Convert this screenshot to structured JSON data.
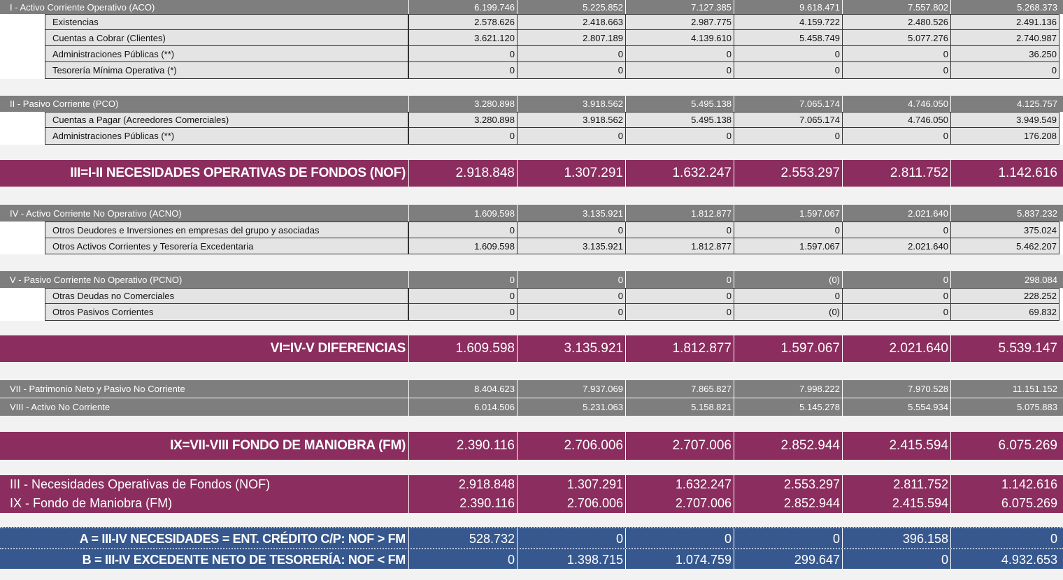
{
  "rows": {
    "aco": {
      "label": "I - Activo Corriente Operativo (ACO)",
      "values": [
        "6.199.746",
        "5.225.852",
        "7.127.385",
        "9.618.471",
        "7.557.802",
        "5.268.373"
      ]
    },
    "existencias": {
      "label": "Existencias",
      "values": [
        "2.578.626",
        "2.418.663",
        "2.987.775",
        "4.159.722",
        "2.480.526",
        "2.491.136"
      ]
    },
    "cuentas_cobrar": {
      "label": "Cuentas a Cobrar (Clientes)",
      "values": [
        "3.621.120",
        "2.807.189",
        "4.139.610",
        "5.458.749",
        "5.077.276",
        "2.740.987"
      ]
    },
    "admin_pub_1": {
      "label": "Administraciones Públicas (**)",
      "values": [
        "0",
        "0",
        "0",
        "0",
        "0",
        "36.250"
      ]
    },
    "tesoreria_min": {
      "label": "Tesorería Mínima Operativa (*)",
      "values": [
        "0",
        "0",
        "0",
        "0",
        "0",
        "0"
      ]
    },
    "pco": {
      "label": "II - Pasivo Corriente (PCO)",
      "values": [
        "3.280.898",
        "3.918.562",
        "5.495.138",
        "7.065.174",
        "4.746.050",
        "4.125.757"
      ]
    },
    "cuentas_pagar": {
      "label": "Cuentas a Pagar (Acreedores Comerciales)",
      "values": [
        "3.280.898",
        "3.918.562",
        "5.495.138",
        "7.065.174",
        "4.746.050",
        "3.949.549"
      ]
    },
    "admin_pub_2": {
      "label": "Administraciones Públicas (**)",
      "values": [
        "0",
        "0",
        "0",
        "0",
        "0",
        "176.208"
      ]
    },
    "nof": {
      "label": "III=I-II  NECESIDADES OPERATIVAS DE FONDOS (NOF)",
      "values": [
        "2.918.848",
        "1.307.291",
        "1.632.247",
        "2.553.297",
        "2.811.752",
        "1.142.616"
      ]
    },
    "acno": {
      "label": "IV - Activo Corriente No Operativo (ACNO)",
      "values": [
        "1.609.598",
        "3.135.921",
        "1.812.877",
        "1.597.067",
        "2.021.640",
        "5.837.232"
      ]
    },
    "otros_deudores": {
      "label": "Otros Deudores e Inversiones en empresas del grupo y asociadas",
      "values": [
        "0",
        "0",
        "0",
        "0",
        "0",
        "375.024"
      ]
    },
    "otros_activos": {
      "label": "Otros Activos Corrientes y Tesorería Excedentaria",
      "values": [
        "1.609.598",
        "3.135.921",
        "1.812.877",
        "1.597.067",
        "2.021.640",
        "5.462.207"
      ]
    },
    "pcno": {
      "label": "V - Pasivo Corriente No Operativo (PCNO)",
      "values": [
        "0",
        "0",
        "0",
        "(0)",
        "0",
        "298.084"
      ]
    },
    "otras_deudas": {
      "label": "Otras Deudas no Comerciales",
      "values": [
        "0",
        "0",
        "0",
        "0",
        "0",
        "228.252"
      ]
    },
    "otros_pasivos": {
      "label": "Otros Pasivos Corrientes",
      "values": [
        "0",
        "0",
        "0",
        "(0)",
        "0",
        "69.832"
      ]
    },
    "diferencias": {
      "label": "VI=IV-V  DIFERENCIAS",
      "values": [
        "1.609.598",
        "3.135.921",
        "1.812.877",
        "1.597.067",
        "2.021.640",
        "5.539.147"
      ]
    },
    "patrimonio": {
      "label": "VII - Patrimonio Neto y Pasivo No Corriente",
      "values": [
        "8.404.623",
        "7.937.069",
        "7.865.827",
        "7.998.222",
        "7.970.528",
        "11.151.152"
      ]
    },
    "activo_nc": {
      "label": "VIII - Activo No Corriente",
      "values": [
        "6.014.506",
        "5.231.063",
        "5.158.821",
        "5.145.278",
        "5.554.934",
        "5.075.883"
      ]
    },
    "fm": {
      "label": "IX=VII-VIII   FONDO DE MANIOBRA (FM)",
      "values": [
        "2.390.116",
        "2.706.006",
        "2.707.006",
        "2.852.944",
        "2.415.594",
        "6.075.269"
      ]
    },
    "nof_sum": {
      "label": "III - Necesidades Operativas de Fondos (NOF)",
      "values": [
        "2.918.848",
        "1.307.291",
        "1.632.247",
        "2.553.297",
        "2.811.752",
        "1.142.616"
      ]
    },
    "fm_sum": {
      "label": "IX - Fondo de Maniobra (FM)",
      "values": [
        "2.390.116",
        "2.706.006",
        "2.707.006",
        "2.852.944",
        "2.415.594",
        "6.075.269"
      ]
    },
    "necesidades": {
      "label": "A = III-IV  NECESIDADES = ENT. CRÉDITO C/P: NOF > FM",
      "values": [
        "528.732",
        "0",
        "0",
        "0",
        "396.158",
        "0"
      ]
    },
    "excedente": {
      "label": "B  = III-IV  EXCEDENTE NETO DE TESORERÍA: NOF < FM",
      "values": [
        "0",
        "1.398.715",
        "1.074.759",
        "299.647",
        "0",
        "4.932.653"
      ]
    }
  },
  "colors": {
    "gray": "#7e7e7e",
    "magenta": "#8b2d5e",
    "blue": "#36588e",
    "detail": "#e4e4e4"
  }
}
